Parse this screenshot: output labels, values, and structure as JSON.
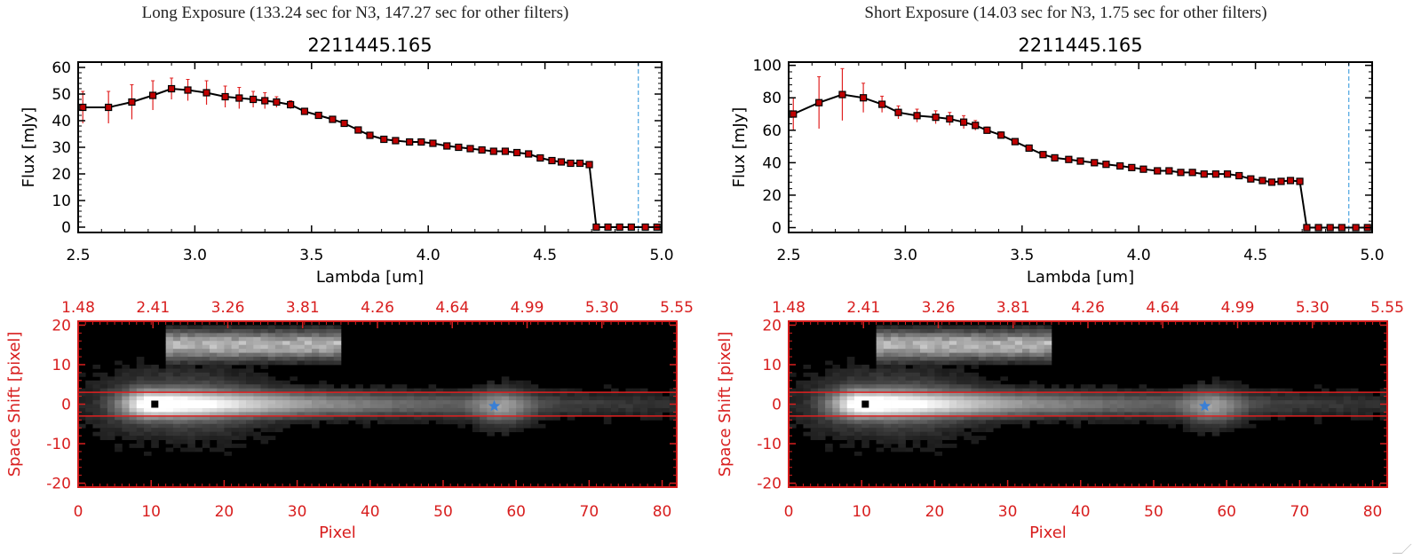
{
  "panels": [
    {
      "header": "Long Exposure (133.24 sec for N3, 147.27 sec for other filters)",
      "spectrum": {
        "type": "line",
        "title": "2211445.165",
        "xlabel": "Lambda [um]",
        "ylabel": "Flux [mJy]",
        "xlim": [
          2.5,
          5.0
        ],
        "ylim": [
          -2,
          62
        ],
        "xticks": [
          "2.5",
          "3.0",
          "3.5",
          "4.0",
          "4.5",
          "5.0"
        ],
        "xtick_values": [
          2.5,
          3.0,
          3.5,
          4.0,
          4.5,
          5.0
        ],
        "yticks": [
          "0",
          "10",
          "20",
          "30",
          "40",
          "50",
          "60"
        ],
        "ytick_values": [
          0,
          10,
          20,
          30,
          40,
          50,
          60
        ],
        "vline_x": 4.9,
        "x": [
          2.52,
          2.63,
          2.73,
          2.82,
          2.9,
          2.97,
          3.05,
          3.13,
          3.19,
          3.25,
          3.3,
          3.35,
          3.41,
          3.47,
          3.53,
          3.59,
          3.64,
          3.7,
          3.75,
          3.81,
          3.86,
          3.92,
          3.97,
          4.02,
          4.08,
          4.13,
          4.18,
          4.23,
          4.28,
          4.33,
          4.38,
          4.43,
          4.48,
          4.53,
          4.57,
          4.61,
          4.65,
          4.69,
          4.72,
          4.77,
          4.82,
          4.87,
          4.93,
          4.98
        ],
        "y": [
          45,
          45,
          47,
          49.5,
          52,
          51.5,
          50.5,
          49,
          48.5,
          48,
          47.5,
          47,
          46,
          43.5,
          42,
          40.5,
          39,
          36.5,
          34.5,
          33,
          32.5,
          32,
          32,
          31.5,
          30.5,
          30,
          29.5,
          29,
          28.5,
          28.5,
          28,
          27.5,
          26,
          25,
          24.5,
          24,
          24,
          23.5,
          0,
          0,
          0,
          0,
          0,
          0
        ],
        "yerr": [
          6,
          6,
          6.5,
          5.5,
          4,
          4,
          4.5,
          4,
          4,
          3,
          3,
          2,
          1.5,
          1,
          1,
          0.8,
          0.8,
          0.8,
          0.8,
          0.5,
          0.5,
          0.5,
          0.5,
          0.5,
          0.5,
          0.5,
          0.5,
          0.5,
          0.5,
          0.5,
          0.5,
          0.5,
          0.5,
          0.5,
          0.5,
          0.5,
          0.5,
          0.5,
          0.5,
          0.5,
          0.5,
          0.5,
          0.5,
          0.5
        ]
      },
      "image": {
        "type": "heatmap",
        "xlabel": "Pixel",
        "ylabel": "Space Shift [pixel]",
        "xlim": [
          0,
          82
        ],
        "ylim": [
          -21,
          21
        ],
        "xticks": [
          "0",
          "10",
          "20",
          "30",
          "40",
          "50",
          "60",
          "70",
          "80"
        ],
        "xtick_values": [
          0,
          10,
          20,
          30,
          40,
          50,
          60,
          70,
          80
        ],
        "yticks": [
          "-20",
          "-10",
          "0",
          "10",
          "20"
        ],
        "ytick_values": [
          -20,
          -10,
          0,
          10,
          20
        ],
        "top_ticks": [
          "1.48",
          "2.41",
          "3.26",
          "3.81",
          "4.26",
          "4.64",
          "4.99",
          "5.30",
          "5.55"
        ],
        "aperture_lines_y": [
          3,
          -3
        ],
        "black_marker": {
          "x": 10.5,
          "y": 0
        },
        "blue_marker": {
          "x": 57,
          "y": -0.5
        }
      }
    },
    {
      "header": "Short Exposure (14.03 sec for N3, 1.75 sec for other filters)",
      "spectrum": {
        "type": "line",
        "title": "2211445.165",
        "xlabel": "Lambda [um]",
        "ylabel": "Flux [mJy]",
        "xlim": [
          2.5,
          5.0
        ],
        "ylim": [
          -3,
          102
        ],
        "xticks": [
          "2.5",
          "3.0",
          "3.5",
          "4.0",
          "4.5",
          "5.0"
        ],
        "xtick_values": [
          2.5,
          3.0,
          3.5,
          4.0,
          4.5,
          5.0
        ],
        "yticks": [
          "0",
          "20",
          "40",
          "60",
          "80",
          "100"
        ],
        "ytick_values": [
          0,
          20,
          40,
          60,
          80,
          100
        ],
        "vline_x": 4.9,
        "x": [
          2.52,
          2.63,
          2.73,
          2.82,
          2.9,
          2.97,
          3.05,
          3.13,
          3.19,
          3.25,
          3.3,
          3.35,
          3.41,
          3.47,
          3.53,
          3.59,
          3.64,
          3.7,
          3.75,
          3.81,
          3.86,
          3.92,
          3.97,
          4.02,
          4.08,
          4.13,
          4.18,
          4.23,
          4.28,
          4.33,
          4.38,
          4.43,
          4.48,
          4.53,
          4.57,
          4.61,
          4.65,
          4.69,
          4.72,
          4.77,
          4.82,
          4.87,
          4.93,
          4.98
        ],
        "y": [
          70,
          77,
          82,
          80,
          76,
          71,
          69,
          68,
          67,
          65,
          63,
          60,
          57,
          53,
          49,
          45,
          43,
          42,
          41,
          40,
          39,
          38,
          37,
          36,
          35,
          35,
          34,
          34,
          33,
          33,
          33,
          32,
          30,
          29,
          28,
          28.5,
          29,
          28.5,
          0,
          0,
          0,
          0,
          0,
          0
        ],
        "yerr": [
          10,
          16,
          16,
          9,
          5,
          4,
          4,
          4,
          4,
          4,
          3,
          2,
          2,
          1.5,
          1,
          1,
          1,
          1,
          1,
          1,
          1,
          1,
          1,
          1,
          1,
          1,
          1,
          1,
          1,
          1,
          1,
          1,
          1,
          1,
          1,
          1,
          1,
          1,
          1,
          1,
          1,
          1,
          1,
          1
        ]
      },
      "image": {
        "type": "heatmap",
        "xlabel": "Pixel",
        "ylabel": "Space Shift [pixel]",
        "xlim": [
          0,
          82
        ],
        "ylim": [
          -21,
          21
        ],
        "xticks": [
          "0",
          "10",
          "20",
          "30",
          "40",
          "50",
          "60",
          "70",
          "80"
        ],
        "xtick_values": [
          0,
          10,
          20,
          30,
          40,
          50,
          60,
          70,
          80
        ],
        "yticks": [
          "-20",
          "-10",
          "0",
          "10",
          "20"
        ],
        "ytick_values": [
          -20,
          -10,
          0,
          10,
          20
        ],
        "top_ticks": [
          "1.48",
          "2.41",
          "3.26",
          "3.81",
          "4.26",
          "4.64",
          "4.99",
          "5.30",
          "5.55"
        ],
        "aperture_lines_y": [
          3,
          -3
        ],
        "black_marker": {
          "x": 10.5,
          "y": 0
        },
        "blue_marker": {
          "x": 57,
          "y": -0.5
        }
      }
    }
  ],
  "chart_data": [
    {
      "type": "line",
      "title": "2211445.165",
      "xlabel": "Lambda [um]",
      "ylabel": "Flux [mJy]",
      "xlim": [
        2.5,
        5.0
      ],
      "ylim": [
        -2,
        62
      ],
      "ref": "panels.0.spectrum"
    },
    {
      "type": "heatmap",
      "xlabel": "Pixel",
      "ylabel": "Space Shift [pixel]",
      "xlim": [
        0,
        82
      ],
      "ylim": [
        -21,
        21
      ],
      "ref": "panels.0.image"
    },
    {
      "type": "line",
      "title": "2211445.165",
      "xlabel": "Lambda [um]",
      "ylabel": "Flux [mJy]",
      "xlim": [
        2.5,
        5.0
      ],
      "ylim": [
        -3,
        102
      ],
      "ref": "panels.1.spectrum"
    },
    {
      "type": "heatmap",
      "xlabel": "Pixel",
      "ylabel": "Space Shift [pixel]",
      "xlim": [
        0,
        82
      ],
      "ylim": [
        -21,
        21
      ],
      "ref": "panels.1.image"
    }
  ],
  "colors": {
    "spectrum_line": "#000000",
    "marker_fill": "#c00000",
    "error_bar": "#e02020",
    "vline": "#4aa3e0",
    "image_axes": "#d81e1e",
    "aperture": "#e02020",
    "blue_marker": "#3a7fd5"
  }
}
